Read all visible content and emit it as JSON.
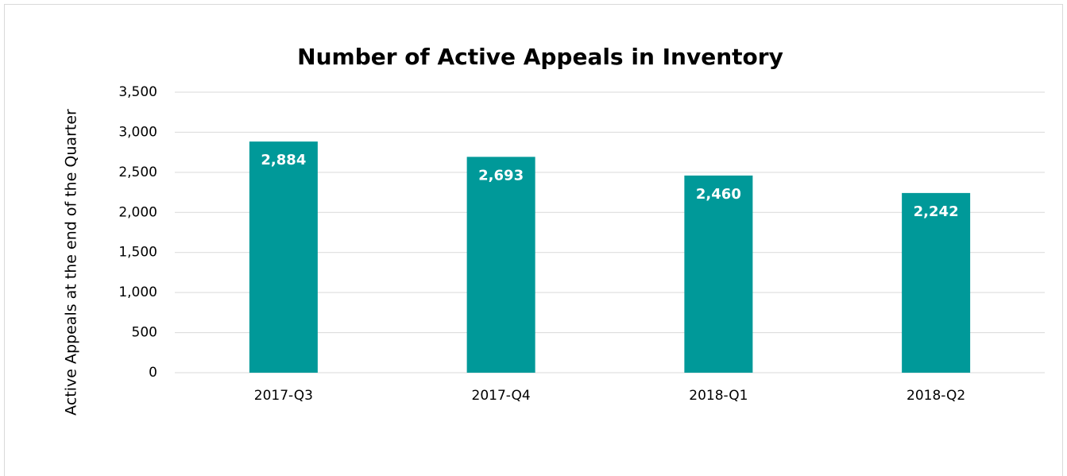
{
  "chart_data": {
    "type": "bar",
    "title": "Number of Active Appeals in Inventory",
    "y_label": "Active Appeals at the end of the Quarter",
    "categories": [
      "2017-Q3",
      "2017-Q4",
      "2018-Q1",
      "2018-Q2"
    ],
    "values": [
      2884,
      2693,
      2460,
      2242
    ],
    "value_labels": [
      "2,884",
      "2,693",
      "2,460",
      "2,242"
    ],
    "color": "#009999",
    "ylim": [
      0,
      3500
    ],
    "yticks": [
      0,
      500,
      {
        "value": 1000,
        "label": "1,000"
      },
      {
        "value": 1500,
        "label": "1,500"
      },
      {
        "value": 2000,
        "label": "2,000"
      },
      {
        "value": 2500,
        "label": "2,500"
      },
      {
        "value": 3000,
        "label": "3,000"
      },
      {
        "value": 3500,
        "label": "3,500"
      }
    ],
    "grid": true
  }
}
